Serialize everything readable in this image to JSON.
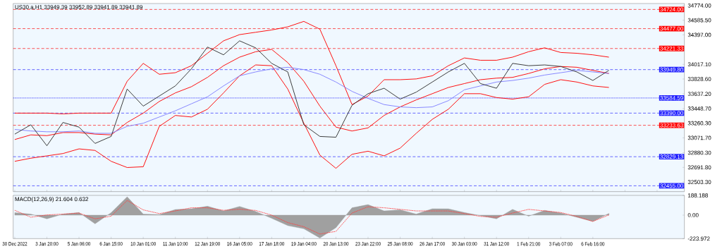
{
  "chart_data": [
    {
      "type": "line",
      "title": "US30.a,H1 33949.39 33952.89 33941.89 33941.89",
      "tick_labels": "y",
      "ylim": [
        32380,
        34800
      ],
      "categories": [
        null,
        null,
        null,
        null,
        null,
        null,
        null,
        null,
        null,
        null,
        null,
        null,
        null,
        null,
        null,
        null,
        null,
        null,
        null,
        null,
        null,
        null,
        null,
        null,
        null,
        null,
        null,
        null,
        null,
        null,
        null,
        null,
        null,
        null,
        null,
        null,
        null,
        null,
        null,
        null,
        null,
        null
      ],
      "yticks": [
        {
          "value": 34774,
          "label": "34774.00"
        },
        {
          "value": 34585.5,
          "label": "34585.50"
        },
        {
          "value": 34397,
          "label": "34397.00"
        },
        {
          "value": 34017.1,
          "label": "34017.10"
        },
        {
          "value": 33828.6,
          "label": "33828.60"
        },
        {
          "value": 33637.2,
          "label": "33637.20"
        },
        {
          "value": 33448.7,
          "label": "33448.70"
        },
        {
          "value": 33260.3,
          "label": "33260.30"
        },
        {
          "value": 33071.7,
          "label": "33071.70"
        },
        {
          "value": 32880.3,
          "label": "32880.30"
        },
        {
          "value": 32691.8,
          "label": "32691.80"
        },
        {
          "value": 32503.3,
          "label": "32503.30"
        }
      ],
      "series": [
        {
          "color": "#ff0000",
          "values": [
            33390,
            33390,
            33390,
            33380,
            33390,
            33390,
            33390,
            33800,
            34030,
            33890,
            33910,
            34000,
            34160,
            34320,
            34400,
            34430,
            34460,
            34500,
            34570,
            34470,
            34000,
            33500,
            33610,
            33820,
            33820,
            33830,
            33870,
            34000,
            34100,
            34070,
            34070,
            34110,
            34180,
            34230,
            34170,
            34160,
            34140,
            34110,
            null,
            null,
            null,
            null
          ]
        },
        {
          "color": "#ff0000",
          "values": [
            33050,
            33110,
            33100,
            33140,
            33140,
            33120,
            33110,
            33270,
            33390,
            33540,
            33650,
            33730,
            33850,
            34000,
            34110,
            34180,
            34210,
            34040,
            33800,
            33480,
            33210,
            33160,
            33200,
            33360,
            33470,
            33560,
            33640,
            33720,
            33770,
            33820,
            33840,
            33850,
            33900,
            33960,
            33990,
            33980,
            33940,
            33900,
            null,
            null,
            null,
            null
          ]
        },
        {
          "color": "#ff0000",
          "values": [
            32770,
            32810,
            32840,
            32870,
            32930,
            32910,
            32770,
            32690,
            32700,
            33220,
            33360,
            33340,
            33440,
            33650,
            33870,
            34010,
            34000,
            33700,
            33260,
            32850,
            32680,
            32860,
            32900,
            32840,
            32940,
            33130,
            33310,
            33440,
            33640,
            33640,
            33590,
            33570,
            33600,
            33760,
            33820,
            33790,
            33740,
            33720,
            null,
            null,
            null,
            null
          ]
        },
        {
          "color": "#8080ff",
          "values": [
            33180,
            33160,
            33150,
            33150,
            33160,
            33130,
            33130,
            33220,
            33260,
            33340,
            33420,
            33510,
            33600,
            33740,
            33870,
            33920,
            33960,
            33980,
            33950,
            33890,
            33790,
            33670,
            33580,
            33500,
            33470,
            33460,
            33470,
            33550,
            33690,
            33740,
            33790,
            33810,
            33840,
            33880,
            33910,
            33940,
            33920,
            33900,
            null,
            null,
            null,
            null
          ]
        },
        {
          "color": "#303030",
          "values": [
            33120,
            33240,
            32970,
            33270,
            33210,
            33000,
            33090,
            33700,
            33480,
            33610,
            33740,
            33960,
            34240,
            34140,
            34320,
            34230,
            34030,
            33920,
            33240,
            33090,
            33080,
            33490,
            33640,
            33710,
            33570,
            33660,
            33790,
            33920,
            34030,
            33770,
            33710,
            34030,
            34000,
            34010,
            33990,
            33920,
            33810,
            33940,
            null,
            null,
            null,
            null
          ]
        }
      ],
      "ref_lines": [
        {
          "axis": "y",
          "value": 34724,
          "label": "34724.00",
          "color": "#ff0000",
          "line_style": "dashed"
        },
        {
          "axis": "y",
          "value": 34477,
          "label": "34477.00",
          "color": "#ff0000",
          "line_style": "dashed"
        },
        {
          "axis": "y",
          "value": 34221.33,
          "label": "34221.33",
          "color": "#ff0000",
          "line_style": "dashed"
        },
        {
          "axis": "y",
          "value": 33949.8,
          "label": "33949.80",
          "color": "#2020ff",
          "line_style": "dashed"
        },
        {
          "axis": "y",
          "value": 33584.59,
          "label": "33584.59",
          "color": "#2020ff",
          "line_style": "dotted"
        },
        {
          "axis": "y",
          "value": 33390,
          "label": "33390.00",
          "color": "#2020ff",
          "line_style": "dashed"
        },
        {
          "axis": "y",
          "value": 33233.63,
          "label": "33233.63",
          "color": "#ff0000",
          "line_style": "dashed"
        },
        {
          "axis": "y",
          "value": 32829.13,
          "label": "32829.13",
          "color": "#2020ff",
          "line_style": "dashed"
        },
        {
          "axis": "y",
          "value": 32455,
          "label": "32455.00",
          "color": "#2020ff",
          "line_style": "dashed"
        }
      ]
    },
    {
      "type": "area",
      "title": "MACD(12,26,9) 21.604 0.632",
      "ylim": [
        -223.972,
        188.188
      ],
      "categories": [
        "30 Dec 2022",
        null,
        "3 Jan 20:00",
        null,
        "5 Jan 06:00",
        null,
        "6 Jan 15:00",
        null,
        "10 Jan 01:00",
        null,
        "11 Jan 10:00",
        null,
        "12 Jan 19:00",
        null,
        "16 Jan 05:00",
        null,
        "17 Jan 18:00",
        null,
        "19 Jan 04:00",
        null,
        "20 Jan 13:00",
        null,
        "23 Jan 22:00",
        null,
        "25 Jan 08:00",
        null,
        "26 Jan 17:00",
        null,
        "30 Jan 03:00",
        null,
        "31 Jan 12:00",
        null,
        "1 Feb 21:00",
        null,
        "3 Feb 07:00",
        null,
        "6 Feb 16:00",
        null,
        null,
        null,
        null,
        null
      ],
      "yticks": [
        {
          "value": 188.188,
          "label": "188.188"
        },
        {
          "value": 0,
          "label": "0.00"
        },
        {
          "value": -223.972,
          "label": "-223.972"
        }
      ],
      "series": [
        {
          "color": "#a0a0a0",
          "values": [
            24,
            10,
            -35,
            10,
            25,
            -83,
            24,
            175,
            10,
            5,
            54,
            60,
            85,
            40,
            83,
            35,
            -30,
            -100,
            -130,
            -218,
            -120,
            70,
            100,
            40,
            50,
            10,
            61,
            60,
            25,
            -5,
            -35,
            55,
            -10,
            45,
            20,
            -20,
            -60,
            17,
            null,
            null,
            null,
            null
          ]
        },
        {
          "type": "line",
          "color": "#ff4040",
          "line_style": "dotted",
          "values": [
            46,
            -20,
            2,
            10,
            20,
            -35,
            -10,
            140,
            50,
            15,
            40,
            70,
            70,
            46,
            56,
            45,
            0,
            -71,
            -110,
            -180,
            -155,
            20,
            80,
            70,
            55,
            40,
            40,
            40,
            15,
            -12,
            -20,
            20,
            55,
            40,
            25,
            -12,
            -60,
            2,
            null,
            null,
            null,
            null
          ]
        }
      ]
    }
  ]
}
